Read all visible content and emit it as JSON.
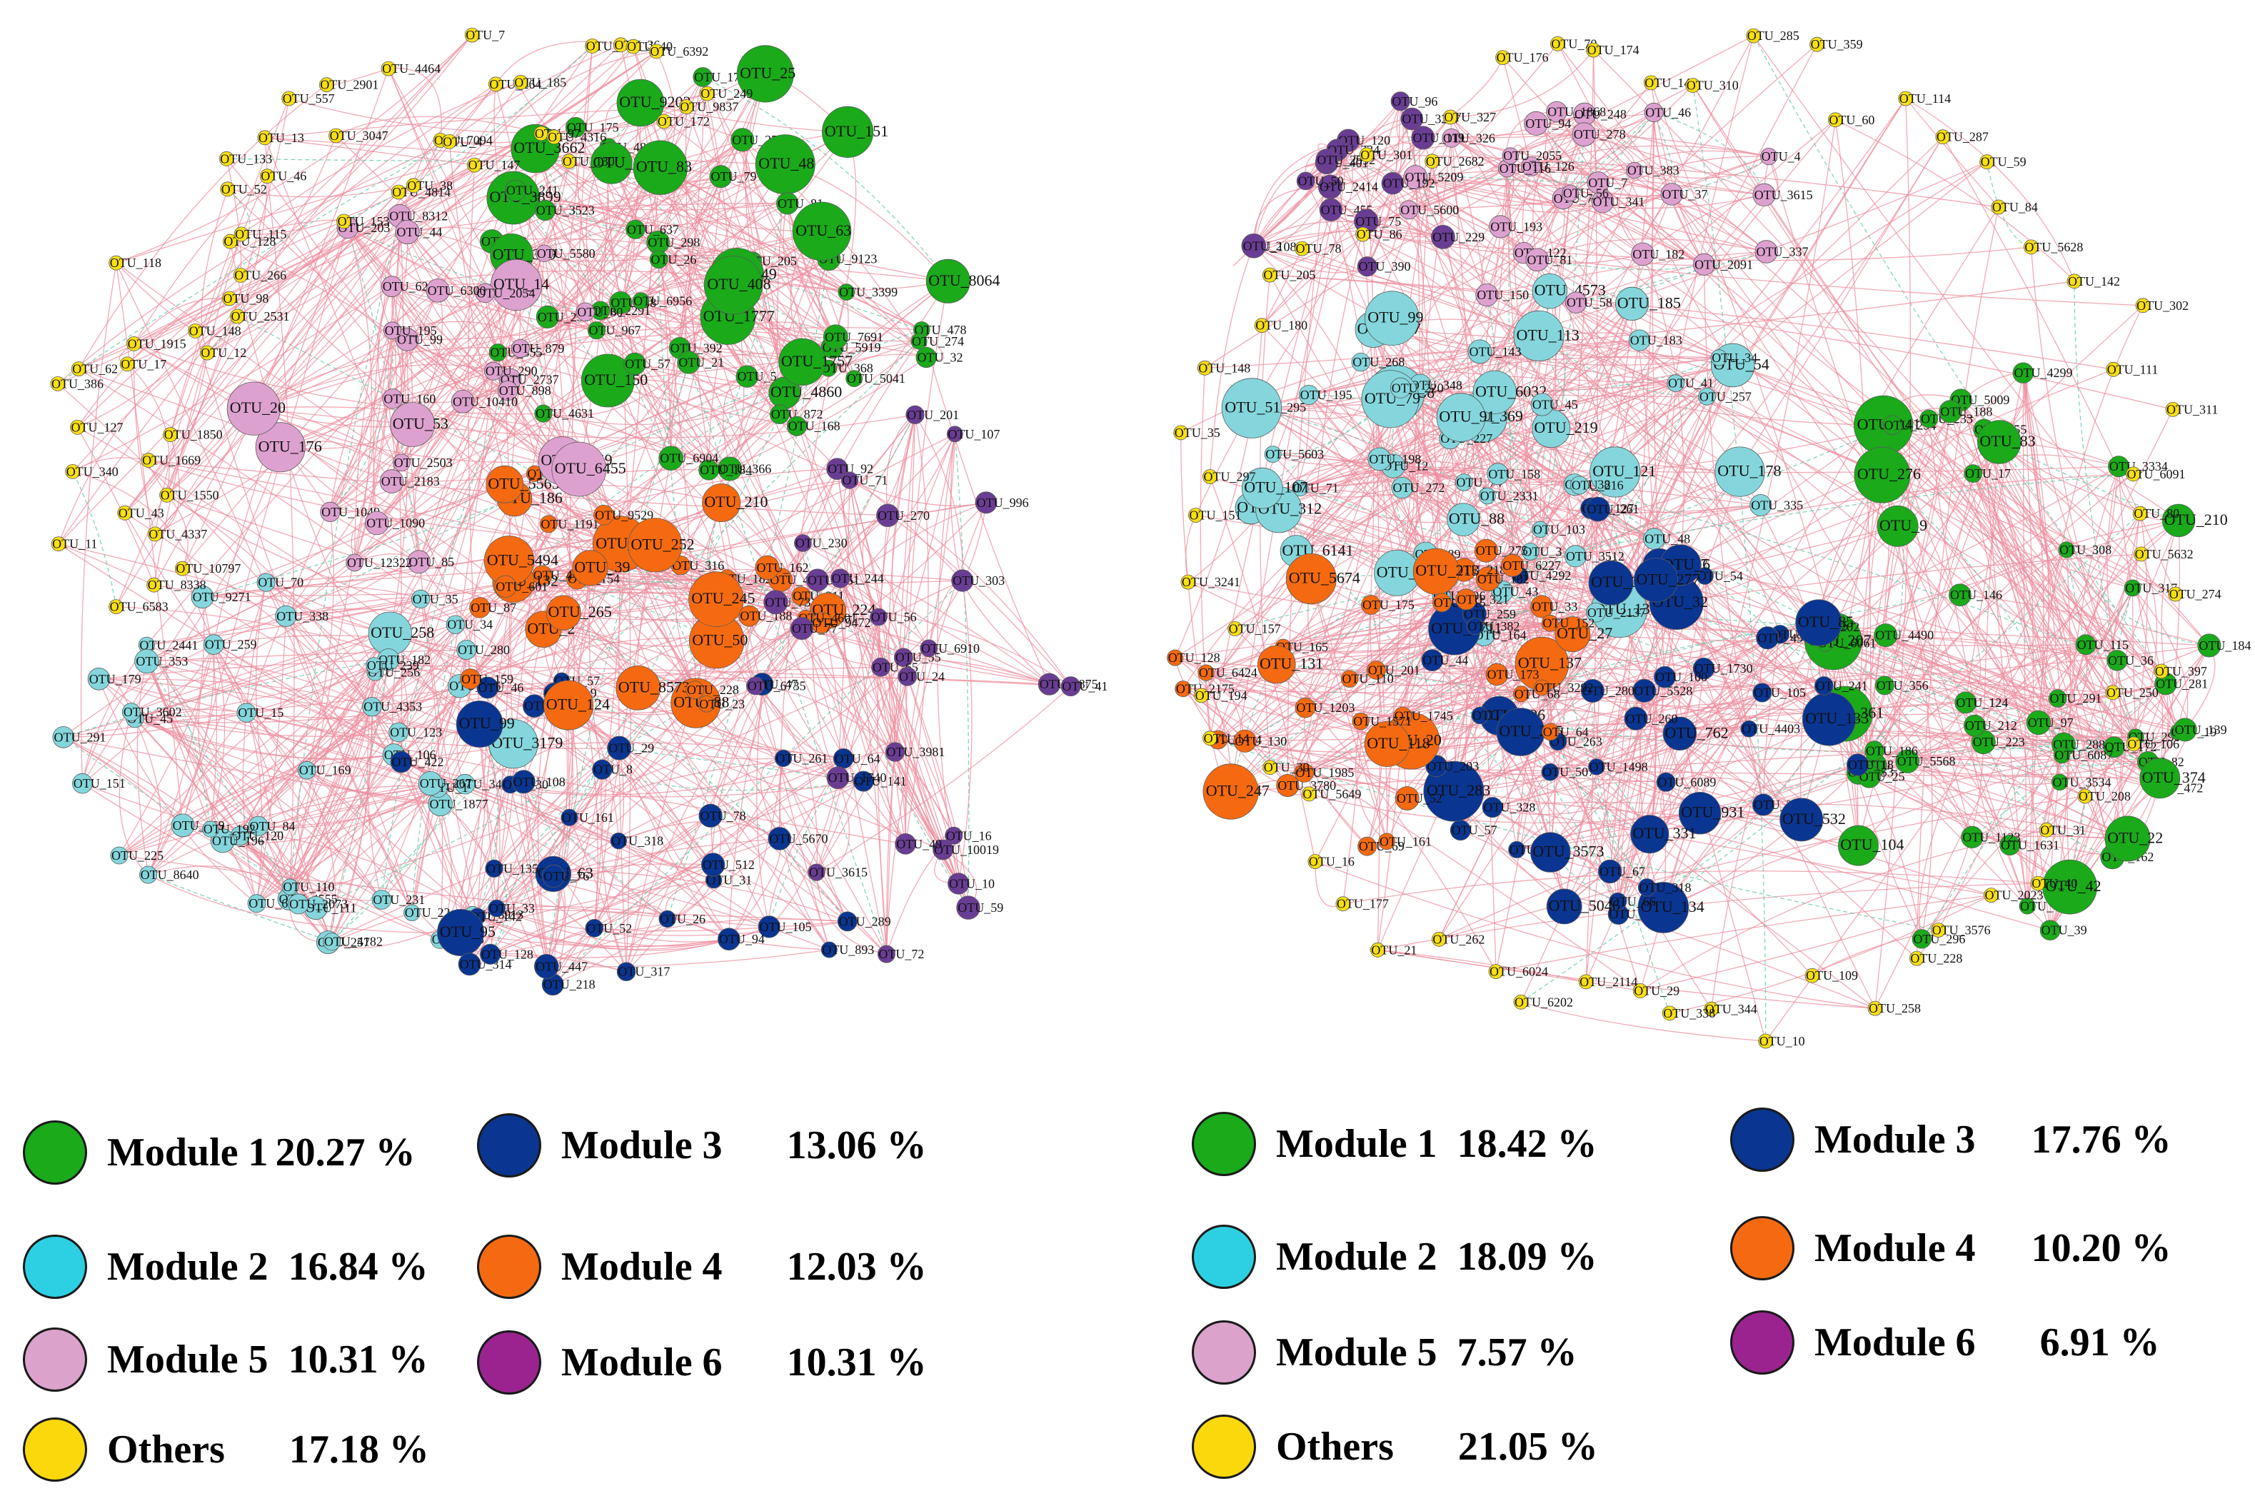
{
  "colors": {
    "module1": "#1aaa1a",
    "module2": "#84d6dc",
    "module3": "#0a3591",
    "module4": "#f56a10",
    "module5": "#dda1cf",
    "module6": "#6a3d94",
    "others": "#f8df13",
    "edge_positive": "#ee8e9e",
    "edge_negative": "#5bc6a3"
  },
  "legend_swatches": {
    "left": {
      "Module 1": "#1aaa1a",
      "Module 2": "#2dd0e2",
      "Module 3": "#0a3591",
      "Module 4": "#f56a10",
      "Module 5": "#dba2cc",
      "Module 6": "#9b2390",
      "Others": "#fbd80b"
    },
    "right": {
      "Module 1": "#1aaa1a",
      "Module 2": "#2dd0e2",
      "Module 3": "#0a3591",
      "Module 4": "#f56a10",
      "Module 5": "#dba2cc",
      "Module 6": "#9b2390",
      "Others": "#fbd80b"
    }
  },
  "legend_left": [
    {
      "name": "Module 1",
      "pct": "20.27 %"
    },
    {
      "name": "Module 3",
      "pct": "13.06 %"
    },
    {
      "name": "Module 2",
      "pct": "16.84 %"
    },
    {
      "name": "Module 4",
      "pct": "12.03 %"
    },
    {
      "name": "Module 5",
      "pct": "10.31 %"
    },
    {
      "name": "Module 6",
      "pct": "10.31 %"
    },
    {
      "name": "Others",
      "pct": "17.18 %"
    }
  ],
  "legend_right": [
    {
      "name": "Module 1",
      "pct": "18.42 %"
    },
    {
      "name": "Module 3",
      "pct": "17.76 %"
    },
    {
      "name": "Module 2",
      "pct": "18.09 %"
    },
    {
      "name": "Module 4",
      "pct": "10.20 %"
    },
    {
      "name": "Module 5",
      "pct": "7.57 %"
    },
    {
      "name": "Module 6",
      "pct": "6.91 %"
    },
    {
      "name": "Others",
      "pct": "21.05 %"
    }
  ],
  "network_left": {
    "module1": [
      "OTU_366",
      "OTU_478",
      "OTU_32",
      "OTU_254",
      "OTU_273",
      "OTU_150",
      "OTU_48",
      "OTU_368",
      "OTU_5041",
      "OTU_3662",
      "OTU_57",
      "OTU_392",
      "OTU_4631",
      "OTU_184",
      "OTU_4860",
      "OTU_9202",
      "OTU_178",
      "OTU_175",
      "OTU_25",
      "OTU_5",
      "OTU_1777",
      "OTU_79",
      "OTU_967",
      "OTU_81",
      "OTU_2291",
      "OTU_5919",
      "OTU_151",
      "OTU_298",
      "OTU_3899",
      "OTU_355",
      "OTU_6904",
      "OTU_205",
      "OTU_9123",
      "OTU_4846",
      "OTU_149",
      "OTU_7691",
      "OTU_872",
      "OTU_26",
      "OTU_38",
      "OTU_6956",
      "OTU_637",
      "OTU_8268",
      "OTU_83",
      "OTU_3523",
      "OTU_21",
      "OTU_3399",
      "OTU_89",
      "OTU_8064",
      "OTU_63",
      "OTU_1757",
      "OTU_168",
      "OTU_274",
      "OTU_319",
      "OTU_241",
      "OTU_408"
    ],
    "module2": [
      "OTU_179",
      "OTU_22",
      "OTU_116",
      "OTU_258",
      "OTU_35",
      "OTU_169",
      "OTU_291",
      "OTU_70",
      "OTU_4555",
      "OTU_182",
      "OTU_225",
      "OTU_280",
      "OTU_84",
      "OTU_257",
      "OTU_3179",
      "OTU_4353",
      "OTU_120",
      "OTU_3404",
      "OTU_256",
      "OTU_45",
      "OTU_111",
      "OTU_6810",
      "OTU_9271",
      "OTU_106",
      "OTU_196",
      "OTU_231",
      "OTU_1877",
      "OTU_1",
      "OTU_8640",
      "OTU_2441",
      "OTU_6913",
      "OTU_969",
      "OTU_267",
      "OTU_110",
      "OTU_353",
      "OTU_192",
      "OTU_34",
      "OTU_246",
      "OTU_151",
      "OTU_3602",
      "OTU_4182",
      "OTU_259",
      "OTU_239",
      "OTU_338",
      "OTU_123",
      "OTU_2073",
      "OTU_15"
    ],
    "module3": [
      "OTU_8",
      "OTU_105",
      "OTU_317",
      "OTU_6",
      "OTU_31",
      "OTU_512",
      "OTU_29",
      "OTU_26",
      "OTU_893",
      "OTU_5670",
      "OTU_218",
      "OTU_47",
      "OTU_63",
      "OTU_64",
      "OTU_261",
      "OTU_76",
      "OTU_141",
      "OTU_142",
      "OTU_30",
      "OTU_57",
      "OTU_46",
      "OTU_33",
      "OTU_135",
      "OTU_52",
      "OTU_95",
      "OTU_289",
      "OTU_447",
      "OTU_314",
      "OTU_219",
      "OTU_161",
      "OTU_108",
      "OTU_318",
      "OTU_422",
      "OTU_78",
      "OTU_94",
      "OTU_99",
      "OTU_128"
    ],
    "module4": [
      "OTU_220",
      "OTU_182",
      "OTU_154",
      "OTU_44",
      "OTU_50",
      "OTU_88",
      "OTU_4512",
      "OTU_87",
      "OTU_2",
      "OTU_19",
      "OTU_265",
      "OTU_124",
      "OTU_162",
      "OTU_211",
      "OTU_1191",
      "OTU_9529",
      "OTU_23",
      "OTU_8573",
      "OTU_316",
      "OTU_252",
      "OTU_224",
      "OTU_186",
      "OTU_132",
      "OTU_210",
      "OTU_245",
      "OTU_5565",
      "OTU_39",
      "OTU_188",
      "OTU_9472",
      "OTU_5494",
      "OTU_228",
      "OTU_601",
      "OTU_4601",
      "OTU_159"
    ],
    "module5": [
      "OTU_99",
      "OTU_14",
      "OTU_2737",
      "OTU_195",
      "OTU_898",
      "OTU_85",
      "OTU_160",
      "OTU_2503",
      "OTU_2659",
      "OTU_6455",
      "OTU_290",
      "OTU_1049",
      "OTU_879",
      "OTU_628",
      "OTU_80",
      "OTU_2054",
      "OTU_53",
      "OTU_176",
      "OTU_12322",
      "OTU_20",
      "OTU_8312",
      "OTU_1090",
      "OTU_10410",
      "OTU_44",
      "OTU_5580",
      "OTU_6300",
      "OTU_203",
      "OTU_2183"
    ],
    "module6": [
      "OTU_107",
      "OTU_351",
      "OTU_92",
      "OTU_72",
      "OTU_56",
      "OTU_55",
      "OTU_201",
      "OTU_230",
      "OTU_3981",
      "OTU_6910",
      "OTU_2875",
      "OTU_59",
      "OTU_1740",
      "OTU_996",
      "OTU_77",
      "OTU_65",
      "OTU_41",
      "OTU_71",
      "OTU_3615",
      "OTU_244",
      "OTU_73",
      "OTU_303",
      "OTU_16",
      "OTU_270",
      "OTU_6735",
      "OTU_10",
      "OTU_24",
      "OTU_10019",
      "OTU_49"
    ],
    "others": [
      "OTU_6583",
      "OTU_8338",
      "OTU_10797",
      "OTU_11",
      "OTU_4337",
      "OTU_43",
      "OTU_1550",
      "OTU_340",
      "OTU_1669",
      "OTU_127",
      "OTU_1850",
      "OTU_386",
      "OTU_62",
      "OTU_17",
      "OTU_1915",
      "OTU_12",
      "OTU_148",
      "OTU_118",
      "OTU_2531",
      "OTU_98",
      "OTU_266",
      "OTU_128",
      "OTU_115",
      "OTU_52",
      "OTU_133",
      "OTU_46",
      "OTU_13",
      "OTU_153",
      "OTU_557",
      "OTU_3047",
      "OTU_2901",
      "OTU_4814",
      "OTU_38",
      "OTU_4464",
      "OTU_7094",
      "OTU_4",
      "OTU_147",
      "OTU_7",
      "OTU_264",
      "OTU_185",
      "OTU_97",
      "OTU_4316",
      "OTU_130",
      "OTU_27",
      "OTU_36",
      "OTU_40",
      "OTU_6392",
      "OTU_172",
      "OTU_9837",
      "OTU_249"
    ]
  },
  "network_right": {
    "module1": [
      "OTU_1631",
      "OTU_5009",
      "OTU_39",
      "OTU_472",
      "OTU_47",
      "OTU_24",
      "OTU_17",
      "OTU_172",
      "OTU_4490",
      "OTU_223",
      "OTU_82",
      "OTU_115",
      "OTU_162",
      "OTU_290",
      "OTU_9",
      "OTU_19",
      "OTU_317",
      "OTU_281",
      "OTU_53",
      "OTU_141",
      "OTU_5568",
      "OTU_36",
      "OTU_288",
      "OTU_139",
      "OTU_207",
      "OTU_22",
      "OTU_255",
      "OTU_3534",
      "OTU_65",
      "OTU_276",
      "OTU_186",
      "OTU_361",
      "OTU_4299",
      "OTU_254",
      "OTU_25",
      "OTU_83",
      "OTU_356",
      "OTU_374",
      "OTU_233",
      "OTU_210",
      "OTU_146",
      "OTU_296",
      "OTU_3334",
      "OTU_308",
      "OTU_188",
      "OTU_97",
      "OTU_184",
      "OTU_42",
      "OTU_202",
      "OTU_6061",
      "OTU_104",
      "OTU_6087",
      "OTU_291",
      "OTU_212",
      "OTU_124",
      "OTU_1123"
    ],
    "module2": [
      "OTU_396",
      "OTU_74",
      "OTU_2331",
      "OTU_368",
      "OTU_54",
      "OTU_34",
      "OTU_257",
      "OTU_272",
      "OTU_158",
      "OTU_369",
      "OTU_4573",
      "OTU_183",
      "OTU_121",
      "OTU_6032",
      "OTU_295",
      "OTU_178",
      "OTU_3512",
      "OTU_335",
      "OTU_38",
      "OTU_138",
      "OTU_348",
      "OTU_12",
      "OTU_222",
      "OTU_217",
      "OTU_164",
      "OTU_79",
      "OTU_88",
      "OTU_103",
      "OTU_71",
      "OTU_312",
      "OTU_220",
      "OTU_13",
      "OTU_2137",
      "OTU_89",
      "OTU_195",
      "OTU_43",
      "OTU_268",
      "OTU_99",
      "OTU_113",
      "OTU_227",
      "OTU_216",
      "OTU_185",
      "OTU_41",
      "OTU_91",
      "OTU_143",
      "OTU_219",
      "OTU_6141",
      "OTU_48",
      "OTU_5603",
      "OTU_107",
      "OTU_349",
      "OTU_198",
      "OTU_45",
      "OTU_51",
      "OTU_3"
    ],
    "module3": [
      "OTU_931",
      "OTU_196",
      "OTU_4499",
      "OTU_32",
      "OTU_18",
      "OTU_28",
      "OTU_307",
      "OTU_1730",
      "OTU_57",
      "OTU_44",
      "OTU_105",
      "OTU_6089",
      "OTU_5528",
      "OTU_333",
      "OTU_507",
      "OTU_762",
      "OTU_4292",
      "OTU_6711",
      "OTU_4403",
      "OTU_328",
      "OTU_6423",
      "OTU_283",
      "OTU_133",
      "OTU_1498",
      "OTU_2",
      "OTU_241",
      "OTU_280",
      "OTU_134",
      "OTU_127",
      "OTU_278",
      "OTU_54",
      "OTU_66",
      "OTU_203",
      "OTU_259",
      "OTU_235",
      "OTU_263",
      "OTU_49",
      "OTU_100",
      "OTU_6",
      "OTU_5046",
      "OTU_261",
      "OTU_320",
      "OTU_67",
      "OTU_277",
      "OTU_331",
      "OTU_260",
      "OTU_382",
      "OTU_85",
      "OTU_3573",
      "OTU_532",
      "OTU_318"
    ],
    "module4": [
      "OTU_275",
      "OTU_52",
      "OTU_137",
      "OTU_165",
      "OTU_128",
      "OTU_20",
      "OTU_33",
      "OTU_3780",
      "OTU_247",
      "OTU_6424",
      "OTU_1985",
      "OTU_175",
      "OTU_144",
      "OTU_69",
      "OTU_102",
      "OTU_118",
      "OTU_218",
      "OTU_68",
      "OTU_131",
      "OTU_201",
      "OTU_27",
      "OTU_213",
      "OTU_64",
      "OTU_161",
      "OTU_215",
      "OTU_321",
      "OTU_1745",
      "OTU_5674",
      "OTU_110",
      "OTU_1203",
      "OTU_173",
      "OTU_2175",
      "OTU_6227",
      "OTU_130",
      "OTU_1571",
      "OTU_3292",
      "OTU_152"
    ],
    "module5": [
      "OTU_76",
      "OTU_248",
      "OTU_1868",
      "OTU_122",
      "OTU_337",
      "OTU_150",
      "OTU_341",
      "OTU_7",
      "OTU_58",
      "OTU_278",
      "OTU_193",
      "OTU_126",
      "OTU_116",
      "OTU_81",
      "OTU_383",
      "OTU_3615",
      "OTU_5600",
      "OTU_4",
      "OTU_46",
      "OTU_2091",
      "OTU_37",
      "OTU_326",
      "OTU_182",
      "OTU_56",
      "OTU_5209",
      "OTU_2055",
      "OTU_94"
    ],
    "module6": [
      "OTU_229",
      "OTU_390",
      "OTU_2414",
      "OTU_3257",
      "OTU_96",
      "OTU_119",
      "OTU_401",
      "OTU_120",
      "OTU_234",
      "OTU_2992",
      "OTU_192",
      "OTU_50",
      "OTU_108",
      "OTU_455",
      "OTU_2",
      "OTU_75"
    ],
    "others": [
      "OTU_5632",
      "OTU_274",
      "OTU_397",
      "OTU_250",
      "OTU_106",
      "OTU_208",
      "OTU_31",
      "OTU_40",
      "OTU_2023",
      "OTU_3576",
      "OTU_228",
      "OTU_258",
      "OTU_109",
      "OTU_10",
      "OTU_344",
      "OTU_338",
      "OTU_29",
      "OTU_2114",
      "OTU_6202",
      "OTU_6024",
      "OTU_262",
      "OTU_21",
      "OTU_177",
      "OTU_16",
      "OTU_5649",
      "OTU_30",
      "OTU_14",
      "OTU_194",
      "OTU_157",
      "OTU_3241",
      "OTU_151",
      "OTU_297",
      "OTU_35",
      "OTU_148",
      "OTU_180",
      "OTU_205",
      "OTU_78",
      "OTU_86",
      "OTU_301",
      "OTU_2682",
      "OTU_327",
      "OTU_176",
      "OTU_70",
      "OTU_174",
      "OTU_140",
      "OTU_310",
      "OTU_285",
      "OTU_359",
      "OTU_60",
      "OTU_114",
      "OTU_287",
      "OTU_59",
      "OTU_84",
      "OTU_5628",
      "OTU_142",
      "OTU_302",
      "OTU_111",
      "OTU_311",
      "OTU_6091",
      "OTU_80"
    ]
  }
}
